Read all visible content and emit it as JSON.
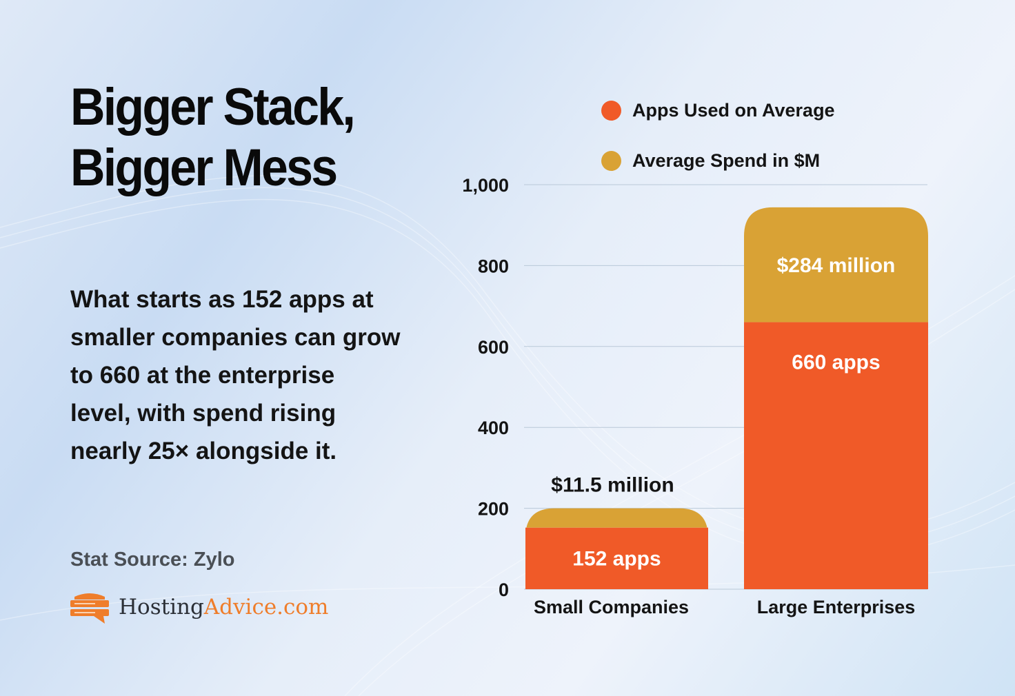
{
  "title_lines": [
    "Bigger Stack,",
    "Bigger Mess"
  ],
  "body_lines": [
    "What starts as 152 apps at",
    "smaller companies can grow",
    "to 660 at the enterprise",
    "level, with spend rising",
    "nearly 25× alongside it."
  ],
  "source": "Stat Source: Zylo",
  "logo": {
    "text_dark": "Hosting",
    "text_accent": "Advice.com",
    "icon": "server-speech-bubble-icon"
  },
  "colors": {
    "apps": "#f05a28",
    "spend": "#d9a235",
    "logo_accent": "#ef7d2a"
  },
  "chart_data": {
    "type": "bar",
    "stacked": true,
    "categories": [
      "Small Companies",
      "Large Enterprises"
    ],
    "series": [
      {
        "name": "Apps Used on Average",
        "values": [
          152,
          660
        ],
        "labels": [
          "152 apps",
          "660 apps"
        ]
      },
      {
        "name": "Average Spend in $M",
        "values": [
          11.5,
          284
        ],
        "labels": [
          "$11.5 million",
          "$284 million"
        ]
      }
    ],
    "ylim": [
      0,
      1000
    ],
    "yticks": [
      0,
      200,
      400,
      600,
      800,
      1000
    ],
    "ytick_labels": [
      "0",
      "200",
      "400",
      "600",
      "800",
      "1,000"
    ],
    "grid": true,
    "legend_placement": "top-right"
  }
}
